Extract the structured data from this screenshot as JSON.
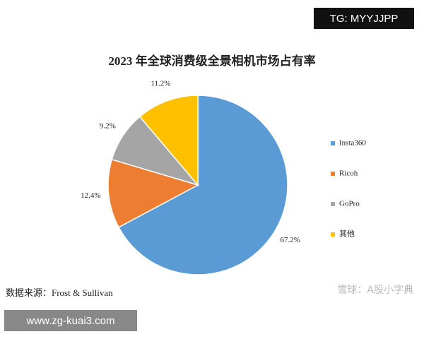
{
  "chart_data": {
    "type": "pie",
    "title": "2023 年全球消费级全景相机市场占有率",
    "categories": [
      "Insta360",
      "Ricoh",
      "GoPro",
      "其他"
    ],
    "values": [
      67.2,
      12.4,
      9.2,
      11.2
    ],
    "value_labels": [
      "67.2%",
      "12.4%",
      "9.2%",
      "11.2%"
    ],
    "colors": [
      "#5b9bd5",
      "#ed7d31",
      "#a5a5a5",
      "#ffc000"
    ],
    "legend": "right",
    "source": "数据来源：Frost & Sullivan"
  },
  "overlays": {
    "badge": "TG: MYYJJPP",
    "watermark": "雪球：A股小字典",
    "site": "www.zg-kuai3.com"
  }
}
